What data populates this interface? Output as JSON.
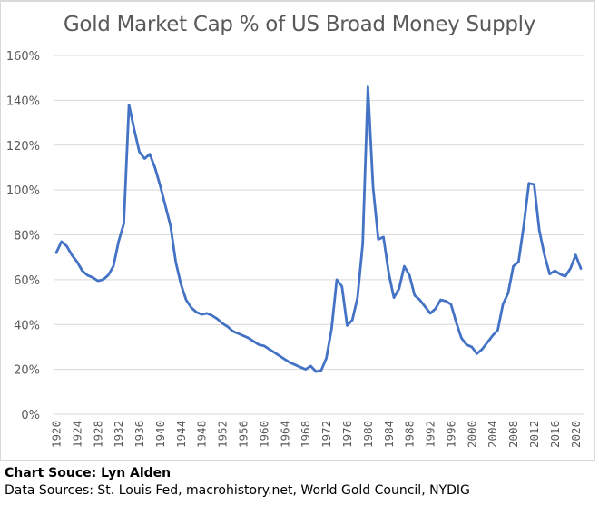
{
  "chart_data": {
    "type": "line",
    "title": "Gold Market Cap % of US Broad Money Supply",
    "xlabel": "",
    "ylabel": "",
    "ylim": [
      0,
      160
    ],
    "xlim": [
      1920,
      2021
    ],
    "grid": true,
    "legend": "none",
    "line_color": "#4472c4",
    "y_ticks": [
      "0%",
      "20%",
      "40%",
      "60%",
      "80%",
      "100%",
      "120%",
      "140%",
      "160%"
    ],
    "y_tick_values": [
      0,
      20,
      40,
      60,
      80,
      100,
      120,
      140,
      160
    ],
    "x_ticks": [
      "1920",
      "1924",
      "1928",
      "1932",
      "1936",
      "1940",
      "1944",
      "1948",
      "1952",
      "1956",
      "1960",
      "1964",
      "1968",
      "1972",
      "1976",
      "1980",
      "1984",
      "1988",
      "1992",
      "1996",
      "2000",
      "2004",
      "2008",
      "2012",
      "2016",
      "2020"
    ],
    "series": [
      {
        "name": "Gold Market Cap % of US Broad Money Supply",
        "x": [
          1920,
          1921,
          1922,
          1923,
          1924,
          1925,
          1926,
          1927,
          1928,
          1929,
          1930,
          1931,
          1932,
          1933,
          1934,
          1935,
          1936,
          1937,
          1938,
          1939,
          1940,
          1941,
          1942,
          1943,
          1944,
          1945,
          1946,
          1947,
          1948,
          1949,
          1950,
          1951,
          1952,
          1953,
          1954,
          1955,
          1956,
          1957,
          1958,
          1959,
          1960,
          1961,
          1962,
          1963,
          1964,
          1965,
          1966,
          1967,
          1968,
          1969,
          1970,
          1971,
          1972,
          1973,
          1974,
          1975,
          1976,
          1977,
          1978,
          1979,
          1980,
          1981,
          1982,
          1983,
          1984,
          1985,
          1986,
          1987,
          1988,
          1989,
          1990,
          1991,
          1992,
          1993,
          1994,
          1995,
          1996,
          1997,
          1998,
          1999,
          2000,
          2001,
          2002,
          2003,
          2004,
          2005,
          2006,
          2007,
          2008,
          2009,
          2010,
          2011,
          2012,
          2013,
          2014,
          2015,
          2016,
          2017,
          2018,
          2019,
          2020,
          2021
        ],
        "values": [
          72,
          77,
          75,
          71,
          68,
          64,
          62,
          61,
          59.5,
          60,
          62,
          66,
          77,
          85,
          138,
          127,
          117,
          114,
          116,
          110,
          102,
          93,
          84,
          68,
          58,
          51,
          47.5,
          45.5,
          44.5,
          45,
          44,
          42.5,
          40.5,
          39,
          37,
          36,
          35,
          34,
          32.5,
          31,
          30.5,
          29,
          27.5,
          26,
          24.5,
          23,
          22,
          21,
          20,
          21.5,
          19,
          19.5,
          25,
          38,
          60,
          57,
          39.5,
          42,
          52,
          76,
          146,
          101,
          78,
          79,
          63,
          52,
          56,
          66,
          62,
          53,
          51,
          48,
          45,
          47,
          51,
          50.5,
          49,
          41,
          34,
          31,
          30,
          27,
          29,
          32,
          35,
          37.5,
          49,
          54,
          66,
          68,
          84,
          103,
          102.5,
          82,
          71,
          62.5,
          64,
          62.5,
          61.5,
          65,
          71,
          65
        ]
      }
    ]
  },
  "footer": {
    "chart_source": "Chart Souce: Lyn Alden",
    "data_sources": "Data Sources: St. Louis Fed, macrohistory.net, World Gold Council, NYDIG"
  }
}
